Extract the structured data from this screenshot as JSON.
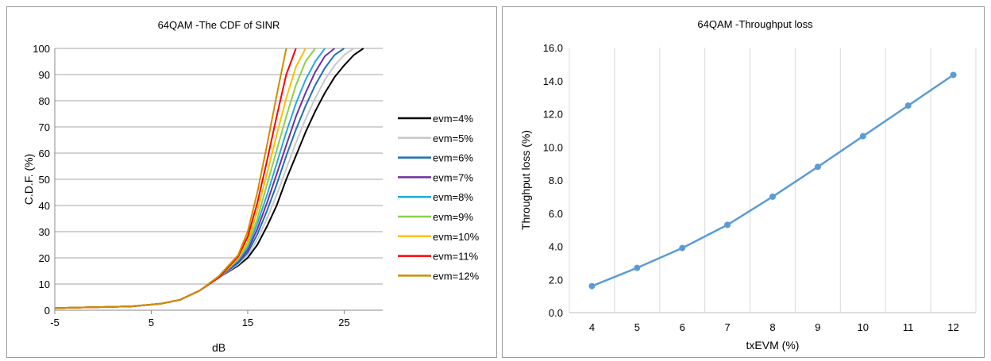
{
  "chart_data": [
    {
      "type": "line",
      "title": "64QAM -The CDF of SINR",
      "xlabel": "dB",
      "ylabel": "C.D.F. (%)",
      "xlim": [
        -5,
        29
      ],
      "ylim": [
        0,
        100
      ],
      "x_ticks": [
        -5,
        5,
        15,
        25
      ],
      "y_ticks": [
        0,
        10,
        20,
        30,
        40,
        50,
        60,
        70,
        80,
        90,
        100
      ],
      "grid": "horizontal",
      "legend_position": "right",
      "series": [
        {
          "name": "evm=4%",
          "color": "#000000",
          "x": [
            -5,
            -3,
            0,
            3,
            6,
            8,
            10,
            12,
            14,
            15,
            16,
            17,
            18,
            19,
            20,
            21,
            22,
            23,
            24,
            25,
            26,
            27
          ],
          "y": [
            0.8,
            1,
            1.2,
            1.5,
            2.5,
            4,
            7.5,
            12.5,
            17,
            20,
            25,
            32,
            40,
            50,
            59,
            68,
            76,
            83,
            89,
            93.5,
            97.5,
            100
          ]
        },
        {
          "name": "evm=5%",
          "color": "#c8c8c8",
          "x": [
            -5,
            -3,
            0,
            3,
            6,
            8,
            10,
            12,
            14,
            15,
            16,
            17,
            18,
            19,
            20,
            21,
            22,
            23,
            24,
            25,
            26
          ],
          "y": [
            0.8,
            1,
            1.2,
            1.5,
            2.5,
            4,
            7.5,
            12.5,
            17.5,
            21,
            27,
            35,
            44,
            54,
            64,
            73,
            81,
            88,
            93.5,
            97.5,
            100
          ]
        },
        {
          "name": "evm=6%",
          "color": "#1f6fb4",
          "x": [
            -5,
            -3,
            0,
            3,
            6,
            8,
            10,
            12,
            14,
            15,
            16,
            17,
            18,
            19,
            20,
            21,
            22,
            23,
            24,
            25
          ],
          "y": [
            0.8,
            1,
            1.2,
            1.5,
            2.5,
            4,
            7.5,
            12.5,
            18,
            22,
            29,
            38,
            48,
            59,
            69,
            78,
            86,
            92.5,
            97.5,
            100
          ]
        },
        {
          "name": "evm=7%",
          "color": "#7030a0",
          "x": [
            -5,
            -3,
            0,
            3,
            6,
            8,
            10,
            12,
            14,
            15,
            16,
            17,
            18,
            19,
            20,
            21,
            22,
            23,
            24
          ],
          "y": [
            0.8,
            1,
            1.2,
            1.5,
            2.5,
            4,
            7.5,
            12.5,
            18.5,
            23,
            31,
            41,
            52,
            63,
            74,
            83,
            91,
            97,
            100
          ]
        },
        {
          "name": "evm=8%",
          "color": "#28a9e0",
          "x": [
            -5,
            -3,
            0,
            3,
            6,
            8,
            10,
            12,
            14,
            15,
            16,
            17,
            18,
            19,
            20,
            21,
            22,
            23
          ],
          "y": [
            0.8,
            1,
            1.2,
            1.5,
            2.5,
            4,
            7.5,
            12.5,
            19,
            24,
            33,
            44,
            56,
            68,
            79,
            88,
            95,
            100
          ]
        },
        {
          "name": "evm=9%",
          "color": "#8fcf4a",
          "x": [
            -5,
            -3,
            0,
            3,
            6,
            8,
            10,
            12,
            14,
            15,
            16,
            17,
            18,
            19,
            20,
            21,
            22
          ],
          "y": [
            0.8,
            1,
            1.2,
            1.5,
            2.5,
            4,
            7.5,
            12.5,
            19.5,
            25,
            35,
            48,
            61,
            74,
            86,
            95,
            100
          ]
        },
        {
          "name": "evm=10%",
          "color": "#ffc000",
          "x": [
            -5,
            -3,
            0,
            3,
            6,
            8,
            10,
            12,
            14,
            15,
            16,
            17,
            18,
            19,
            20,
            21
          ],
          "y": [
            0.8,
            1,
            1.2,
            1.5,
            2.5,
            4,
            7.5,
            12.5,
            20,
            26,
            38,
            52,
            67,
            81,
            93,
            100
          ]
        },
        {
          "name": "evm=11%",
          "color": "#ff0000",
          "x": [
            -5,
            -3,
            0,
            3,
            6,
            8,
            10,
            12,
            14,
            15,
            16,
            17,
            18,
            19,
            20
          ],
          "y": [
            0.8,
            1,
            1.2,
            1.5,
            2.5,
            4,
            7.5,
            12.5,
            20.5,
            28,
            41,
            57,
            74,
            90,
            100
          ]
        },
        {
          "name": "evm=12%",
          "color": "#d08c00",
          "x": [
            -5,
            -3,
            0,
            3,
            6,
            8,
            10,
            12,
            14,
            15,
            16,
            17,
            18,
            19
          ],
          "y": [
            0.8,
            1,
            1.2,
            1.5,
            2.5,
            4,
            7.5,
            13,
            21,
            30,
            45,
            63,
            82,
            100
          ]
        }
      ]
    },
    {
      "type": "line",
      "title": "64QAM -Throughput loss",
      "xlabel": "txEVM (%)",
      "ylabel": "Throughput loss (%)",
      "ylim": [
        0,
        16
      ],
      "y_ticks": [
        "0.0",
        "2.0",
        "4.0",
        "6.0",
        "8.0",
        "10.0",
        "12.0",
        "14.0",
        "16.0"
      ],
      "grid": "vertical",
      "markers": true,
      "categories": [
        "4",
        "5",
        "6",
        "7",
        "8",
        "9",
        "10",
        "11",
        "12"
      ],
      "series": [
        {
          "name": "",
          "color": "#5b9bd5",
          "values": [
            1.6,
            2.7,
            3.9,
            5.3,
            7.0,
            8.8,
            10.65,
            12.5,
            14.35
          ]
        }
      ]
    }
  ]
}
